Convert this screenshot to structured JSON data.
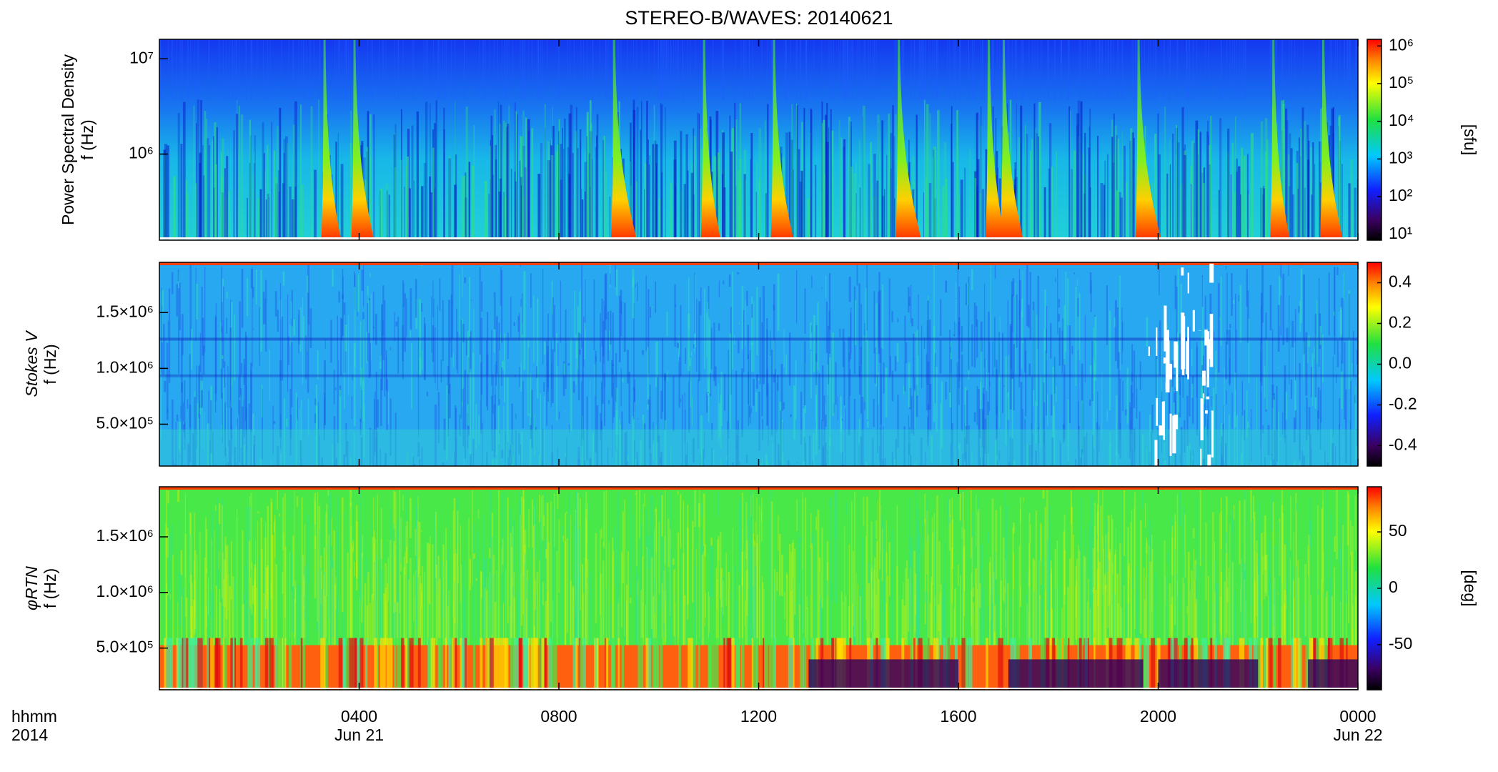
{
  "figure": {
    "title": "STEREO-B/WAVES: 20140621",
    "xlabel": "hhmm",
    "year": "2014",
    "xlim": [
      0,
      24
    ],
    "xticks": [
      {
        "value": 4,
        "label": "0400"
      },
      {
        "value": 8,
        "label": "0800"
      },
      {
        "value": 12,
        "label": "1200"
      },
      {
        "value": 16,
        "label": "1600"
      },
      {
        "value": 20,
        "label": "2000"
      },
      {
        "value": 24,
        "label": "0000"
      }
    ],
    "date_labels": [
      {
        "value": 4,
        "label": "Jun 21"
      },
      {
        "value": 24,
        "label": "Jun 22"
      }
    ]
  },
  "chart_data": [
    {
      "type": "heatmap",
      "ylabel": "Power Spectral Density",
      "ylabel2": "f (Hz)",
      "yscale": "log",
      "ylim": [
        125000,
        16000000
      ],
      "yticks": [
        {
          "value": 1000000,
          "label": "10⁶"
        },
        {
          "value": 10000000,
          "label": "10⁷"
        }
      ],
      "bursts": [
        3.3,
        3.9,
        9.1,
        10.9,
        12.3,
        14.8,
        16.6,
        16.9,
        19.6,
        22.3,
        23.3
      ],
      "colorbar": {
        "scale": "log",
        "lim": [
          7,
          1500000
        ],
        "label": "[sfu]",
        "ticks": [
          {
            "value": 10,
            "label": "10¹"
          },
          {
            "value": 100,
            "label": "10²"
          },
          {
            "value": 1000,
            "label": "10³"
          },
          {
            "value": 10000,
            "label": "10⁴"
          },
          {
            "value": 100000,
            "label": "10⁵"
          },
          {
            "value": 1000000,
            "label": "10⁶"
          }
        ]
      }
    },
    {
      "type": "heatmap",
      "ylabel": "Stokes V",
      "ylabel2": "f (Hz)",
      "yscale": "linear",
      "ylim": [
        125000,
        1950000
      ],
      "yticks": [
        {
          "value": 500000,
          "label": "5.0×10⁵"
        },
        {
          "value": 1000000,
          "label": "1.0×10⁶"
        },
        {
          "value": 1500000,
          "label": "1.5×10⁶"
        }
      ],
      "colorbar": {
        "scale": "linear",
        "lim": [
          -0.5,
          0.5
        ],
        "ticks": [
          -0.4,
          -0.2,
          {
            "value": 0,
            "label": "0.0"
          },
          0.2,
          0.4
        ]
      }
    },
    {
      "type": "heatmap",
      "ylabel": "φRTN",
      "ylabel2": "f (Hz)",
      "yscale": "linear",
      "ylim": [
        125000,
        1950000
      ],
      "yticks": [
        {
          "value": 500000,
          "label": "5.0×10⁵"
        },
        {
          "value": 1000000,
          "label": "1.0×10⁶"
        },
        {
          "value": 1500000,
          "label": "1.5×10⁶"
        }
      ],
      "colorbar": {
        "scale": "linear",
        "lim": [
          -90,
          90
        ],
        "label": "[deg]",
        "ticks": [
          -50,
          0,
          50
        ]
      }
    }
  ]
}
